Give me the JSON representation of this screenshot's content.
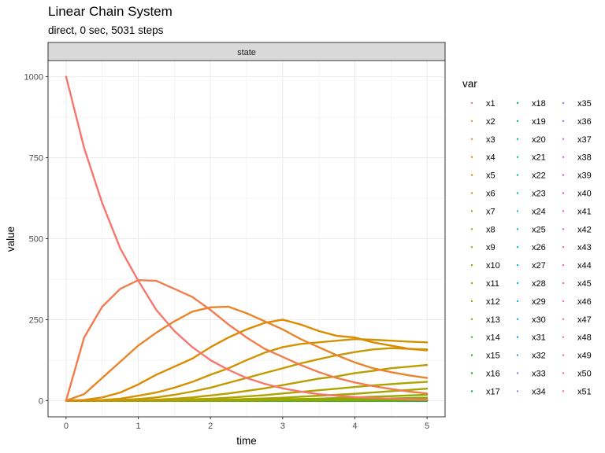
{
  "chart_data": {
    "type": "line",
    "title": "Linear Chain System",
    "subtitle": "direct, 0 sec, 5031 steps",
    "facet": "state",
    "xlabel": "time",
    "ylabel": "value",
    "xlim": [
      -0.25,
      5.25
    ],
    "ylim": [
      -50,
      1050
    ],
    "xticks": [
      0,
      1,
      2,
      3,
      4,
      5
    ],
    "yticks": [
      0,
      250,
      500,
      750,
      1000
    ],
    "grid": true,
    "legend_title": "var",
    "legend_position": "right",
    "x": [
      0,
      0.25,
      0.5,
      0.75,
      1,
      1.25,
      1.5,
      1.75,
      2,
      2.25,
      2.5,
      2.75,
      3,
      3.25,
      3.5,
      3.75,
      4,
      4.25,
      4.5,
      4.75,
      5
    ],
    "series": [
      {
        "name": "x1",
        "color": "#F8766D",
        "values": [
          1000,
          780,
          610,
          470,
          370,
          280,
          215,
          165,
          125,
          95,
          70,
          52,
          38,
          28,
          20,
          15,
          11,
          8,
          6,
          4,
          3
        ]
      },
      {
        "name": "x2",
        "color": "#F17D4F",
        "values": [
          0,
          195,
          290,
          345,
          372,
          370,
          345,
          320,
          280,
          235,
          195,
          160,
          135,
          110,
          88,
          70,
          56,
          45,
          36,
          28,
          22
        ]
      },
      {
        "name": "x3",
        "color": "#E98529",
        "values": [
          0,
          20,
          70,
          120,
          170,
          210,
          245,
          275,
          288,
          290,
          270,
          245,
          220,
          190,
          165,
          140,
          118,
          100,
          88,
          78,
          70
        ]
      },
      {
        "name": "x4",
        "color": "#DC8B00",
        "values": [
          0,
          2,
          10,
          25,
          50,
          80,
          105,
          130,
          165,
          195,
          220,
          240,
          250,
          235,
          215,
          200,
          195,
          180,
          170,
          160,
          155
        ]
      },
      {
        "name": "x5",
        "color": "#D19300",
        "values": [
          0,
          0,
          2,
          6,
          15,
          25,
          40,
          58,
          80,
          100,
          125,
          148,
          165,
          175,
          180,
          185,
          190,
          188,
          185,
          182,
          180
        ]
      },
      {
        "name": "x6",
        "color": "#C59900",
        "values": [
          0,
          0,
          0,
          2,
          5,
          10,
          18,
          28,
          40,
          55,
          70,
          85,
          100,
          115,
          128,
          140,
          150,
          158,
          162,
          160,
          158
        ]
      },
      {
        "name": "x7",
        "color": "#BA9E00",
        "values": [
          0,
          0,
          0,
          0,
          1,
          3,
          6,
          10,
          16,
          22,
          30,
          38,
          48,
          58,
          68,
          75,
          85,
          92,
          100,
          105,
          110
        ]
      },
      {
        "name": "x8",
        "color": "#AFA300",
        "values": [
          0,
          0,
          0,
          0,
          0,
          1,
          2,
          4,
          6,
          9,
          13,
          17,
          22,
          27,
          32,
          37,
          42,
          47,
          51,
          55,
          58
        ]
      },
      {
        "name": "x9",
        "color": "#A3A500",
        "values": [
          0,
          0,
          0,
          0,
          0,
          0,
          1,
          1,
          2,
          3,
          5,
          7,
          9,
          12,
          15,
          18,
          21,
          25,
          29,
          33,
          37
        ]
      },
      {
        "name": "x10",
        "color": "#96A900",
        "values": [
          0,
          0,
          0,
          0,
          0,
          0,
          0,
          0,
          1,
          1,
          2,
          3,
          4,
          5,
          6,
          8,
          10,
          12,
          14,
          16,
          18
        ]
      },
      {
        "name": "x11",
        "color": "#8AAB00",
        "values": [
          0,
          0,
          0,
          0,
          0,
          0,
          0,
          0,
          0,
          0,
          1,
          1,
          2,
          2,
          3,
          4,
          5,
          6,
          7,
          8,
          9
        ]
      },
      {
        "name": "x12",
        "color": "#7CAE00",
        "values": [
          0,
          0,
          0,
          0,
          0,
          0,
          0,
          0,
          0,
          0,
          0,
          0,
          1,
          1,
          1,
          2,
          2,
          3,
          3,
          4,
          4
        ]
      },
      {
        "name": "x13",
        "color": "#6BB100",
        "values": [
          0,
          0,
          0,
          0,
          0,
          0,
          0,
          0,
          0,
          0,
          0,
          0,
          0,
          0,
          0,
          1,
          1,
          1,
          1,
          2,
          2
        ]
      },
      {
        "name": "x14",
        "color": "#57B400",
        "values": [
          0,
          0,
          0,
          0,
          0,
          0,
          0,
          0,
          0,
          0,
          0,
          0,
          0,
          0,
          0,
          0,
          0,
          0,
          1,
          1,
          1
        ]
      },
      {
        "name": "x15",
        "color": "#39B600",
        "values": [
          0,
          0,
          0,
          0,
          0,
          0,
          0,
          0,
          0,
          0,
          0,
          0,
          0,
          0,
          0,
          0,
          0,
          0,
          0,
          0,
          1
        ]
      },
      {
        "name": "x16",
        "color": "#00B81F",
        "values": [
          0,
          0,
          0,
          0,
          0,
          0,
          0,
          0,
          0,
          0,
          0,
          0,
          0,
          0,
          0,
          0,
          0,
          0,
          0,
          0,
          0
        ]
      },
      {
        "name": "x17",
        "color": "#00BA42",
        "values": [
          0,
          0,
          0,
          0,
          0,
          0,
          0,
          0,
          0,
          0,
          0,
          0,
          0,
          0,
          0,
          0,
          0,
          0,
          0,
          0,
          0
        ]
      },
      {
        "name": "x18",
        "color": "#00BC59",
        "values": [
          0,
          0,
          0,
          0,
          0,
          0,
          0,
          0,
          0,
          0,
          0,
          0,
          0,
          0,
          0,
          0,
          0,
          0,
          0,
          0,
          0
        ]
      },
      {
        "name": "x19",
        "color": "#00BE6C",
        "values": [
          0,
          0,
          0,
          0,
          0,
          0,
          0,
          0,
          0,
          0,
          0,
          0,
          0,
          0,
          0,
          0,
          0,
          0,
          0,
          0,
          0
        ]
      },
      {
        "name": "x20",
        "color": "#00BF7D",
        "values": [
          0,
          0,
          0,
          0,
          0,
          0,
          0,
          0,
          0,
          0,
          0,
          0,
          0,
          0,
          0,
          0,
          0,
          0,
          0,
          0,
          0
        ]
      },
      {
        "name": "x21",
        "color": "#00C08C",
        "values": [
          0,
          0,
          0,
          0,
          0,
          0,
          0,
          0,
          0,
          0,
          0,
          0,
          0,
          0,
          0,
          0,
          0,
          0,
          0,
          0,
          0
        ]
      },
      {
        "name": "x22",
        "color": "#00C19A",
        "values": [
          0,
          0,
          0,
          0,
          0,
          0,
          0,
          0,
          0,
          0,
          0,
          0,
          0,
          0,
          0,
          0,
          0,
          0,
          0,
          0,
          0
        ]
      },
      {
        "name": "x23",
        "color": "#00C0A8",
        "values": [
          0,
          0,
          0,
          0,
          0,
          0,
          0,
          0,
          0,
          0,
          0,
          0,
          0,
          0,
          0,
          0,
          0,
          0,
          0,
          0,
          0
        ]
      },
      {
        "name": "x24",
        "color": "#00C0B5",
        "values": [
          0,
          0,
          0,
          0,
          0,
          0,
          0,
          0,
          0,
          0,
          0,
          0,
          0,
          0,
          0,
          0,
          0,
          0,
          0,
          0,
          0
        ]
      },
      {
        "name": "x25",
        "color": "#00BEC2",
        "values": [
          0,
          0,
          0,
          0,
          0,
          0,
          0,
          0,
          0,
          0,
          0,
          0,
          0,
          0,
          0,
          0,
          0,
          0,
          0,
          0,
          0
        ]
      },
      {
        "name": "x26",
        "color": "#00BCD0",
        "values": [
          0,
          0,
          0,
          0,
          0,
          0,
          0,
          0,
          0,
          0,
          0,
          0,
          0,
          0,
          0,
          0,
          0,
          0,
          0,
          0,
          0
        ]
      },
      {
        "name": "x27",
        "color": "#00B9DC",
        "values": [
          0,
          0,
          0,
          0,
          0,
          0,
          0,
          0,
          0,
          0,
          0,
          0,
          0,
          0,
          0,
          0,
          0,
          0,
          0,
          0,
          0
        ]
      },
      {
        "name": "x28",
        "color": "#00B5E8",
        "values": [
          0,
          0,
          0,
          0,
          0,
          0,
          0,
          0,
          0,
          0,
          0,
          0,
          0,
          0,
          0,
          0,
          0,
          0,
          0,
          0,
          0
        ]
      },
      {
        "name": "x29",
        "color": "#00B0F3",
        "values": [
          0,
          0,
          0,
          0,
          0,
          0,
          0,
          0,
          0,
          0,
          0,
          0,
          0,
          0,
          0,
          0,
          0,
          0,
          0,
          0,
          0
        ]
      },
      {
        "name": "x30",
        "color": "#00AAFE",
        "values": [
          0,
          0,
          0,
          0,
          0,
          0,
          0,
          0,
          0,
          0,
          0,
          0,
          0,
          0,
          0,
          0,
          0,
          0,
          0,
          0,
          0
        ]
      },
      {
        "name": "x31",
        "color": "#00A2FF",
        "values": [
          0,
          0,
          0,
          0,
          0,
          0,
          0,
          0,
          0,
          0,
          0,
          0,
          0,
          0,
          0,
          0,
          0,
          0,
          0,
          0,
          0
        ]
      },
      {
        "name": "x32",
        "color": "#2D98FF",
        "values": [
          0,
          0,
          0,
          0,
          0,
          0,
          0,
          0,
          0,
          0,
          0,
          0,
          0,
          0,
          0,
          0,
          0,
          0,
          0,
          0,
          0
        ]
      },
      {
        "name": "x33",
        "color": "#6A8EFF",
        "values": [
          0,
          0,
          0,
          0,
          0,
          0,
          0,
          0,
          0,
          0,
          0,
          0,
          0,
          0,
          0,
          0,
          0,
          0,
          0,
          0,
          0
        ]
      },
      {
        "name": "x34",
        "color": "#8B83FF",
        "values": [
          0,
          0,
          0,
          0,
          0,
          0,
          0,
          0,
          0,
          0,
          0,
          0,
          0,
          0,
          0,
          0,
          0,
          0,
          0,
          0,
          0
        ]
      },
      {
        "name": "x35",
        "color": "#A378FF",
        "values": [
          0,
          0,
          0,
          0,
          0,
          0,
          0,
          0,
          0,
          0,
          0,
          0,
          0,
          0,
          0,
          0,
          0,
          0,
          0,
          0,
          0
        ]
      },
      {
        "name": "x36",
        "color": "#B76DFF",
        "values": [
          0,
          0,
          0,
          0,
          0,
          0,
          0,
          0,
          0,
          0,
          0,
          0,
          0,
          0,
          0,
          0,
          0,
          0,
          0,
          0,
          0
        ]
      },
      {
        "name": "x37",
        "color": "#C663F8",
        "values": [
          0,
          0,
          0,
          0,
          0,
          0,
          0,
          0,
          0,
          0,
          0,
          0,
          0,
          0,
          0,
          0,
          0,
          0,
          0,
          0,
          0
        ]
      },
      {
        "name": "x38",
        "color": "#D45BF0",
        "values": [
          0,
          0,
          0,
          0,
          0,
          0,
          0,
          0,
          0,
          0,
          0,
          0,
          0,
          0,
          0,
          0,
          0,
          0,
          0,
          0,
          0
        ]
      },
      {
        "name": "x39",
        "color": "#E056E6",
        "values": [
          0,
          0,
          0,
          0,
          0,
          0,
          0,
          0,
          0,
          0,
          0,
          0,
          0,
          0,
          0,
          0,
          0,
          0,
          0,
          0,
          0
        ]
      },
      {
        "name": "x40",
        "color": "#E953DB",
        "values": [
          0,
          0,
          0,
          0,
          0,
          0,
          0,
          0,
          0,
          0,
          0,
          0,
          0,
          0,
          0,
          0,
          0,
          0,
          0,
          0,
          0
        ]
      },
      {
        "name": "x41",
        "color": "#F153CF",
        "values": [
          0,
          0,
          0,
          0,
          0,
          0,
          0,
          0,
          0,
          0,
          0,
          0,
          0,
          0,
          0,
          0,
          0,
          0,
          0,
          0,
          0
        ]
      },
      {
        "name": "x42",
        "color": "#F756C2",
        "values": [
          0,
          0,
          0,
          0,
          0,
          0,
          0,
          0,
          0,
          0,
          0,
          0,
          0,
          0,
          0,
          0,
          0,
          0,
          0,
          0,
          0
        ]
      },
      {
        "name": "x43",
        "color": "#FB5BB4",
        "values": [
          0,
          0,
          0,
          0,
          0,
          0,
          0,
          0,
          0,
          0,
          0,
          0,
          0,
          0,
          0,
          0,
          0,
          0,
          0,
          0,
          0
        ]
      },
      {
        "name": "x44",
        "color": "#FE61A6",
        "values": [
          0,
          0,
          0,
          0,
          0,
          0,
          0,
          0,
          0,
          0,
          0,
          0,
          0,
          0,
          0,
          0,
          0,
          0,
          0,
          0,
          0
        ]
      },
      {
        "name": "x45",
        "color": "#FF6898",
        "values": [
          0,
          0,
          0,
          0,
          0,
          0,
          0,
          0,
          0,
          0,
          0,
          0,
          0,
          0,
          0,
          0,
          0,
          0,
          0,
          0,
          0
        ]
      },
      {
        "name": "x46",
        "color": "#FF6D8A",
        "values": [
          0,
          0,
          0,
          0,
          0,
          0,
          0,
          0,
          0,
          0,
          0,
          0,
          0,
          0,
          0,
          0,
          0,
          0,
          0,
          0,
          0
        ]
      },
      {
        "name": "x47",
        "color": "#FD727C",
        "values": [
          0,
          0,
          0,
          0,
          0,
          0,
          0,
          0,
          0,
          0,
          0,
          0,
          0,
          0,
          0,
          0,
          0,
          0,
          0,
          0,
          0
        ]
      },
      {
        "name": "x48",
        "color": "#FA746F",
        "values": [
          0,
          0,
          0,
          0,
          0,
          0,
          0,
          0,
          0,
          0,
          0,
          0,
          0,
          0,
          0,
          0,
          0,
          0,
          0,
          0,
          0
        ]
      },
      {
        "name": "x49",
        "color": "#F8766D",
        "values": [
          0,
          0,
          0,
          0,
          0,
          0,
          0,
          0,
          0,
          0,
          0,
          0,
          0,
          0,
          0,
          0,
          0,
          0,
          0,
          0,
          0
        ]
      },
      {
        "name": "x50",
        "color": "#F8746E",
        "values": [
          0,
          0,
          0,
          0,
          0,
          0,
          0,
          0,
          0,
          0,
          0,
          0,
          0,
          0,
          0,
          0,
          0,
          0,
          0,
          0,
          0
        ]
      },
      {
        "name": "x51",
        "color": "#F77070",
        "values": [
          0,
          0,
          0,
          0,
          0,
          0,
          0,
          0,
          0,
          0,
          0,
          0,
          0,
          0,
          0,
          0,
          0,
          0,
          0,
          0,
          0
        ]
      }
    ]
  }
}
